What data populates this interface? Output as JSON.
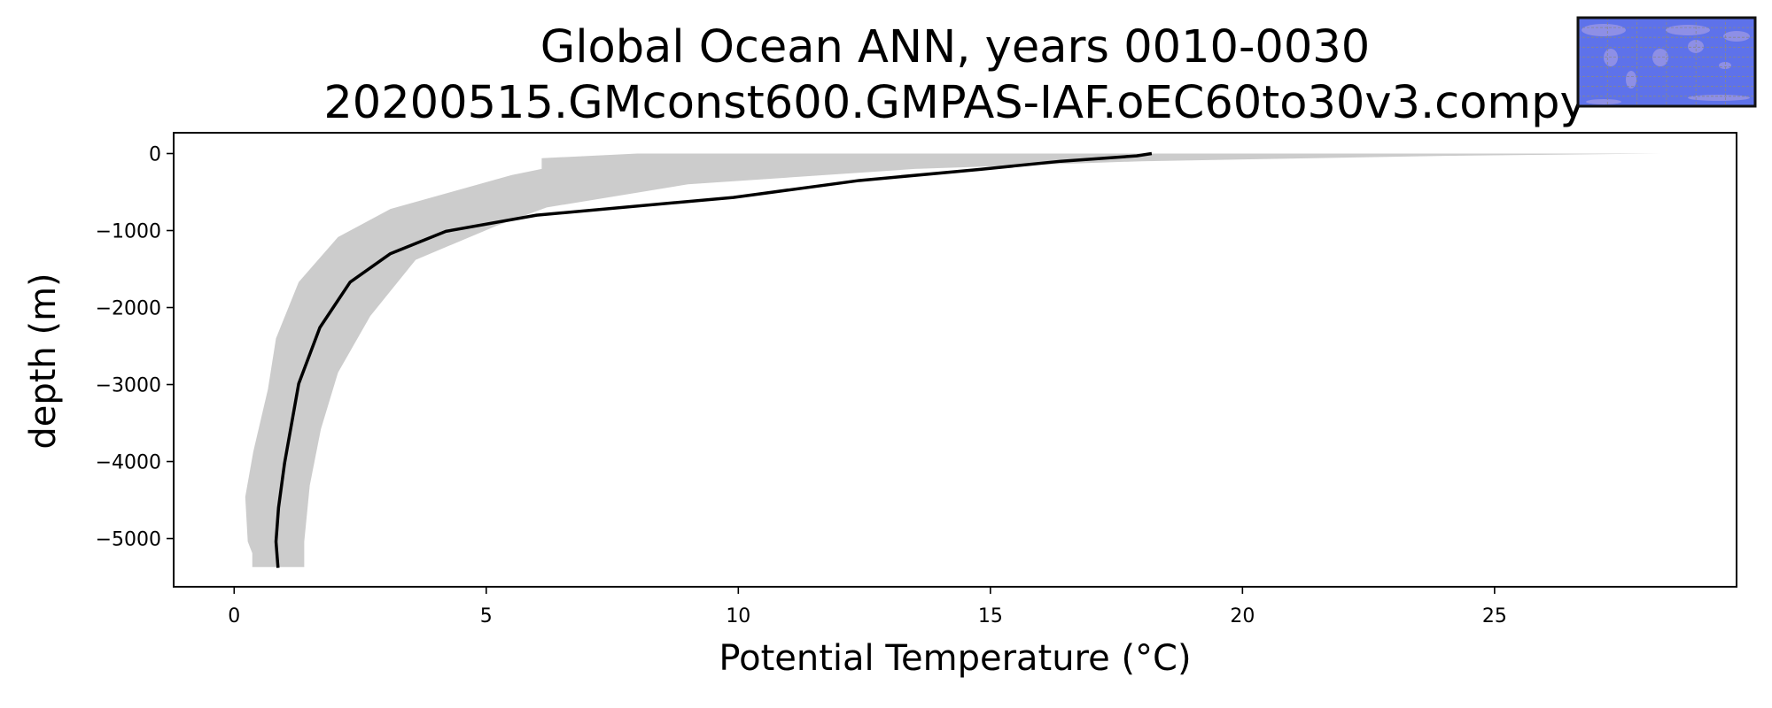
{
  "chart_data": {
    "type": "line",
    "title": "Global Ocean ANN, years 0010-0030",
    "subtitle": "20200515.GMconst600.GMPAS-IAF.oEC60to30v3.compy",
    "xlabel": "Potential Temperature (°C)",
    "ylabel": "depth (m)",
    "xlim": [
      -1.2,
      29.8
    ],
    "ylim": [
      -5626,
      270
    ],
    "xticks": [
      0,
      5,
      10,
      15,
      20,
      25
    ],
    "yticks": [
      0,
      -1000,
      -2000,
      -3000,
      -4000,
      -5000
    ],
    "xtick_labels": [
      "0",
      "5",
      "10",
      "15",
      "20",
      "25"
    ],
    "ytick_labels": [
      "0",
      "−1000",
      "−2000",
      "−3000",
      "−4000",
      "−5000"
    ],
    "grid": false,
    "series": [
      {
        "name": "mean",
        "color": "#000000",
        "depth": [
          0,
          -30,
          -100,
          -205,
          -350,
          -570,
          -800,
          -1010,
          -1300,
          -1670,
          -2260,
          -2990,
          -4020,
          -4600,
          -5040,
          -5380
        ],
        "values": [
          18.2,
          17.9,
          16.4,
          14.8,
          12.4,
          9.9,
          6.0,
          4.2,
          3.1,
          2.3,
          1.7,
          1.28,
          1.0,
          0.88,
          0.83,
          0.87
        ]
      }
    ],
    "shaded_range": {
      "name": "spread",
      "color": "#cccccc",
      "lower": {
        "depth": [
          0,
          -60,
          -200,
          -280,
          -500,
          -720,
          -1085,
          -1670,
          -2400,
          -3060,
          -3870,
          -4460,
          -5040,
          -5190,
          -5370
        ],
        "values": [
          8.0,
          6.1,
          6.1,
          5.5,
          4.3,
          3.1,
          2.06,
          1.28,
          0.83,
          0.67,
          0.38,
          0.22,
          0.27,
          0.36,
          0.36
        ]
      },
      "upper": {
        "depth": [
          0,
          -30,
          -100,
          -200,
          -400,
          -700,
          -940,
          -1380,
          -2110,
          -2845,
          -3580,
          -4310,
          -5040,
          -5370
        ],
        "values": [
          28.3,
          24.0,
          18.0,
          13.5,
          9.0,
          6.2,
          5.2,
          3.6,
          2.7,
          2.06,
          1.72,
          1.5,
          1.39,
          1.39
        ]
      }
    },
    "inset_map": {
      "ocean_color": "#5e72ea",
      "land_color": "#8e8fe6"
    }
  }
}
